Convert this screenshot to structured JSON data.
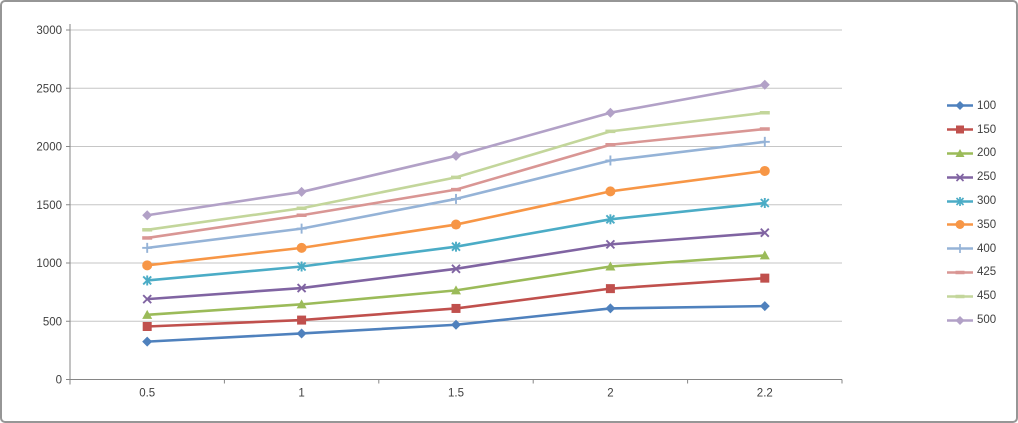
{
  "chart_data": {
    "type": "line",
    "title": "",
    "xlabel": "",
    "ylabel": "",
    "x_categories": [
      "0.5",
      "1",
      "1.5",
      "2",
      "2.2"
    ],
    "y_ticks": [
      "0",
      "500",
      "1000",
      "1500",
      "2000",
      "2500",
      "3000"
    ],
    "ylim": [
      0,
      3000
    ],
    "grid": "horizontal-major",
    "legend_position": "right",
    "series": [
      {
        "name": "100",
        "color": "#4F81BD",
        "marker": "diamond",
        "values": [
          325,
          395,
          470,
          610,
          630
        ]
      },
      {
        "name": "150",
        "color": "#C0504D",
        "marker": "square",
        "values": [
          455,
          510,
          610,
          780,
          870
        ]
      },
      {
        "name": "200",
        "color": "#9BBB59",
        "marker": "triangle",
        "values": [
          555,
          645,
          765,
          970,
          1065
        ]
      },
      {
        "name": "250",
        "color": "#8064A2",
        "marker": "x",
        "values": [
          690,
          785,
          950,
          1160,
          1260
        ]
      },
      {
        "name": "300",
        "color": "#4BACC6",
        "marker": "asterisk",
        "values": [
          850,
          970,
          1140,
          1375,
          1515
        ]
      },
      {
        "name": "350",
        "color": "#F79646",
        "marker": "circle",
        "values": [
          980,
          1130,
          1330,
          1615,
          1790
        ]
      },
      {
        "name": "400",
        "color": "#95B3D7",
        "marker": "plus",
        "values": [
          1130,
          1295,
          1550,
          1880,
          2040
        ]
      },
      {
        "name": "425",
        "color": "#D99694",
        "marker": "dash",
        "values": [
          1215,
          1410,
          1630,
          2015,
          2150
        ]
      },
      {
        "name": "450",
        "color": "#C3D69B",
        "marker": "dash",
        "values": [
          1285,
          1470,
          1735,
          2130,
          2290
        ]
      },
      {
        "name": "500",
        "color": "#B2A1C7",
        "marker": "diamond",
        "values": [
          1410,
          1610,
          1920,
          2290,
          2530
        ]
      }
    ]
  },
  "style_colors": {
    "axis_line": "#868686",
    "gridline": "#C6C6C6",
    "tick_text": "#404040",
    "frame_border": "#969696",
    "background": "#FFFFFF"
  }
}
